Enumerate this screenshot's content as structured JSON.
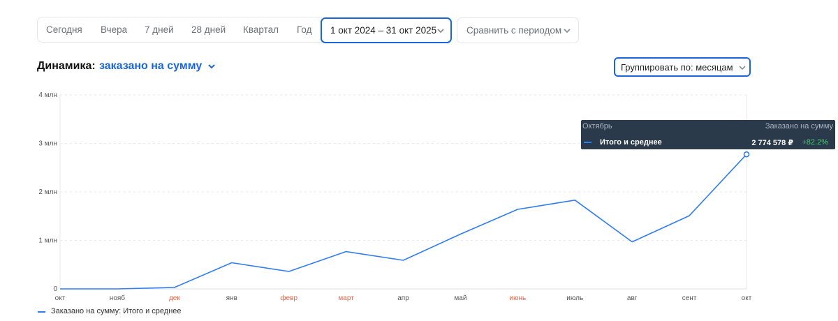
{
  "periods": [
    "Сегодня",
    "Вчера",
    "7 дней",
    "28 дней",
    "Квартал",
    "Год"
  ],
  "range": {
    "label": "1 окт 2024 – 31 окт 2025"
  },
  "compare": {
    "label": "Сравнить с периодом"
  },
  "heading": {
    "label": "Динамика:",
    "metric": "заказано на сумму"
  },
  "group_by": {
    "label": "Группировать по: месяцам"
  },
  "tooltip": {
    "month": "Октябрь",
    "metric": "Заказано на сумму",
    "series": "Итого и среднее",
    "value": "2 774 578 ₽",
    "delta": "+82.2%"
  },
  "legend": {
    "label": "Заказано на сумму: Итого и среднее"
  },
  "colors": {
    "accent": "#1a66d9",
    "line": "#2f7df0",
    "weekend_month": "#e8644a",
    "positive": "#3fcf6a",
    "tooltip_bg": "#2b3a4a"
  },
  "chart_data": {
    "type": "line",
    "categories": [
      "окт",
      "нояб",
      "дек",
      "янв",
      "февр",
      "март",
      "апр",
      "май",
      "июнь",
      "июль",
      "авг",
      "сент",
      "окт"
    ],
    "highlight_categories": [
      "дек",
      "февр",
      "март",
      "июнь"
    ],
    "series": [
      {
        "name": "Заказано на сумму: Итого и среднее",
        "values": [
          0,
          0,
          30000,
          540000,
          360000,
          770000,
          590000,
          1130000,
          1640000,
          1830000,
          970000,
          1510000,
          2774578
        ]
      }
    ],
    "y_ticks": [
      "0",
      "1 млн",
      "2 млн",
      "3 млн",
      "4 млн"
    ],
    "ylim": [
      0,
      4000000
    ],
    "grid": true,
    "legend_position": "bottom-left"
  }
}
